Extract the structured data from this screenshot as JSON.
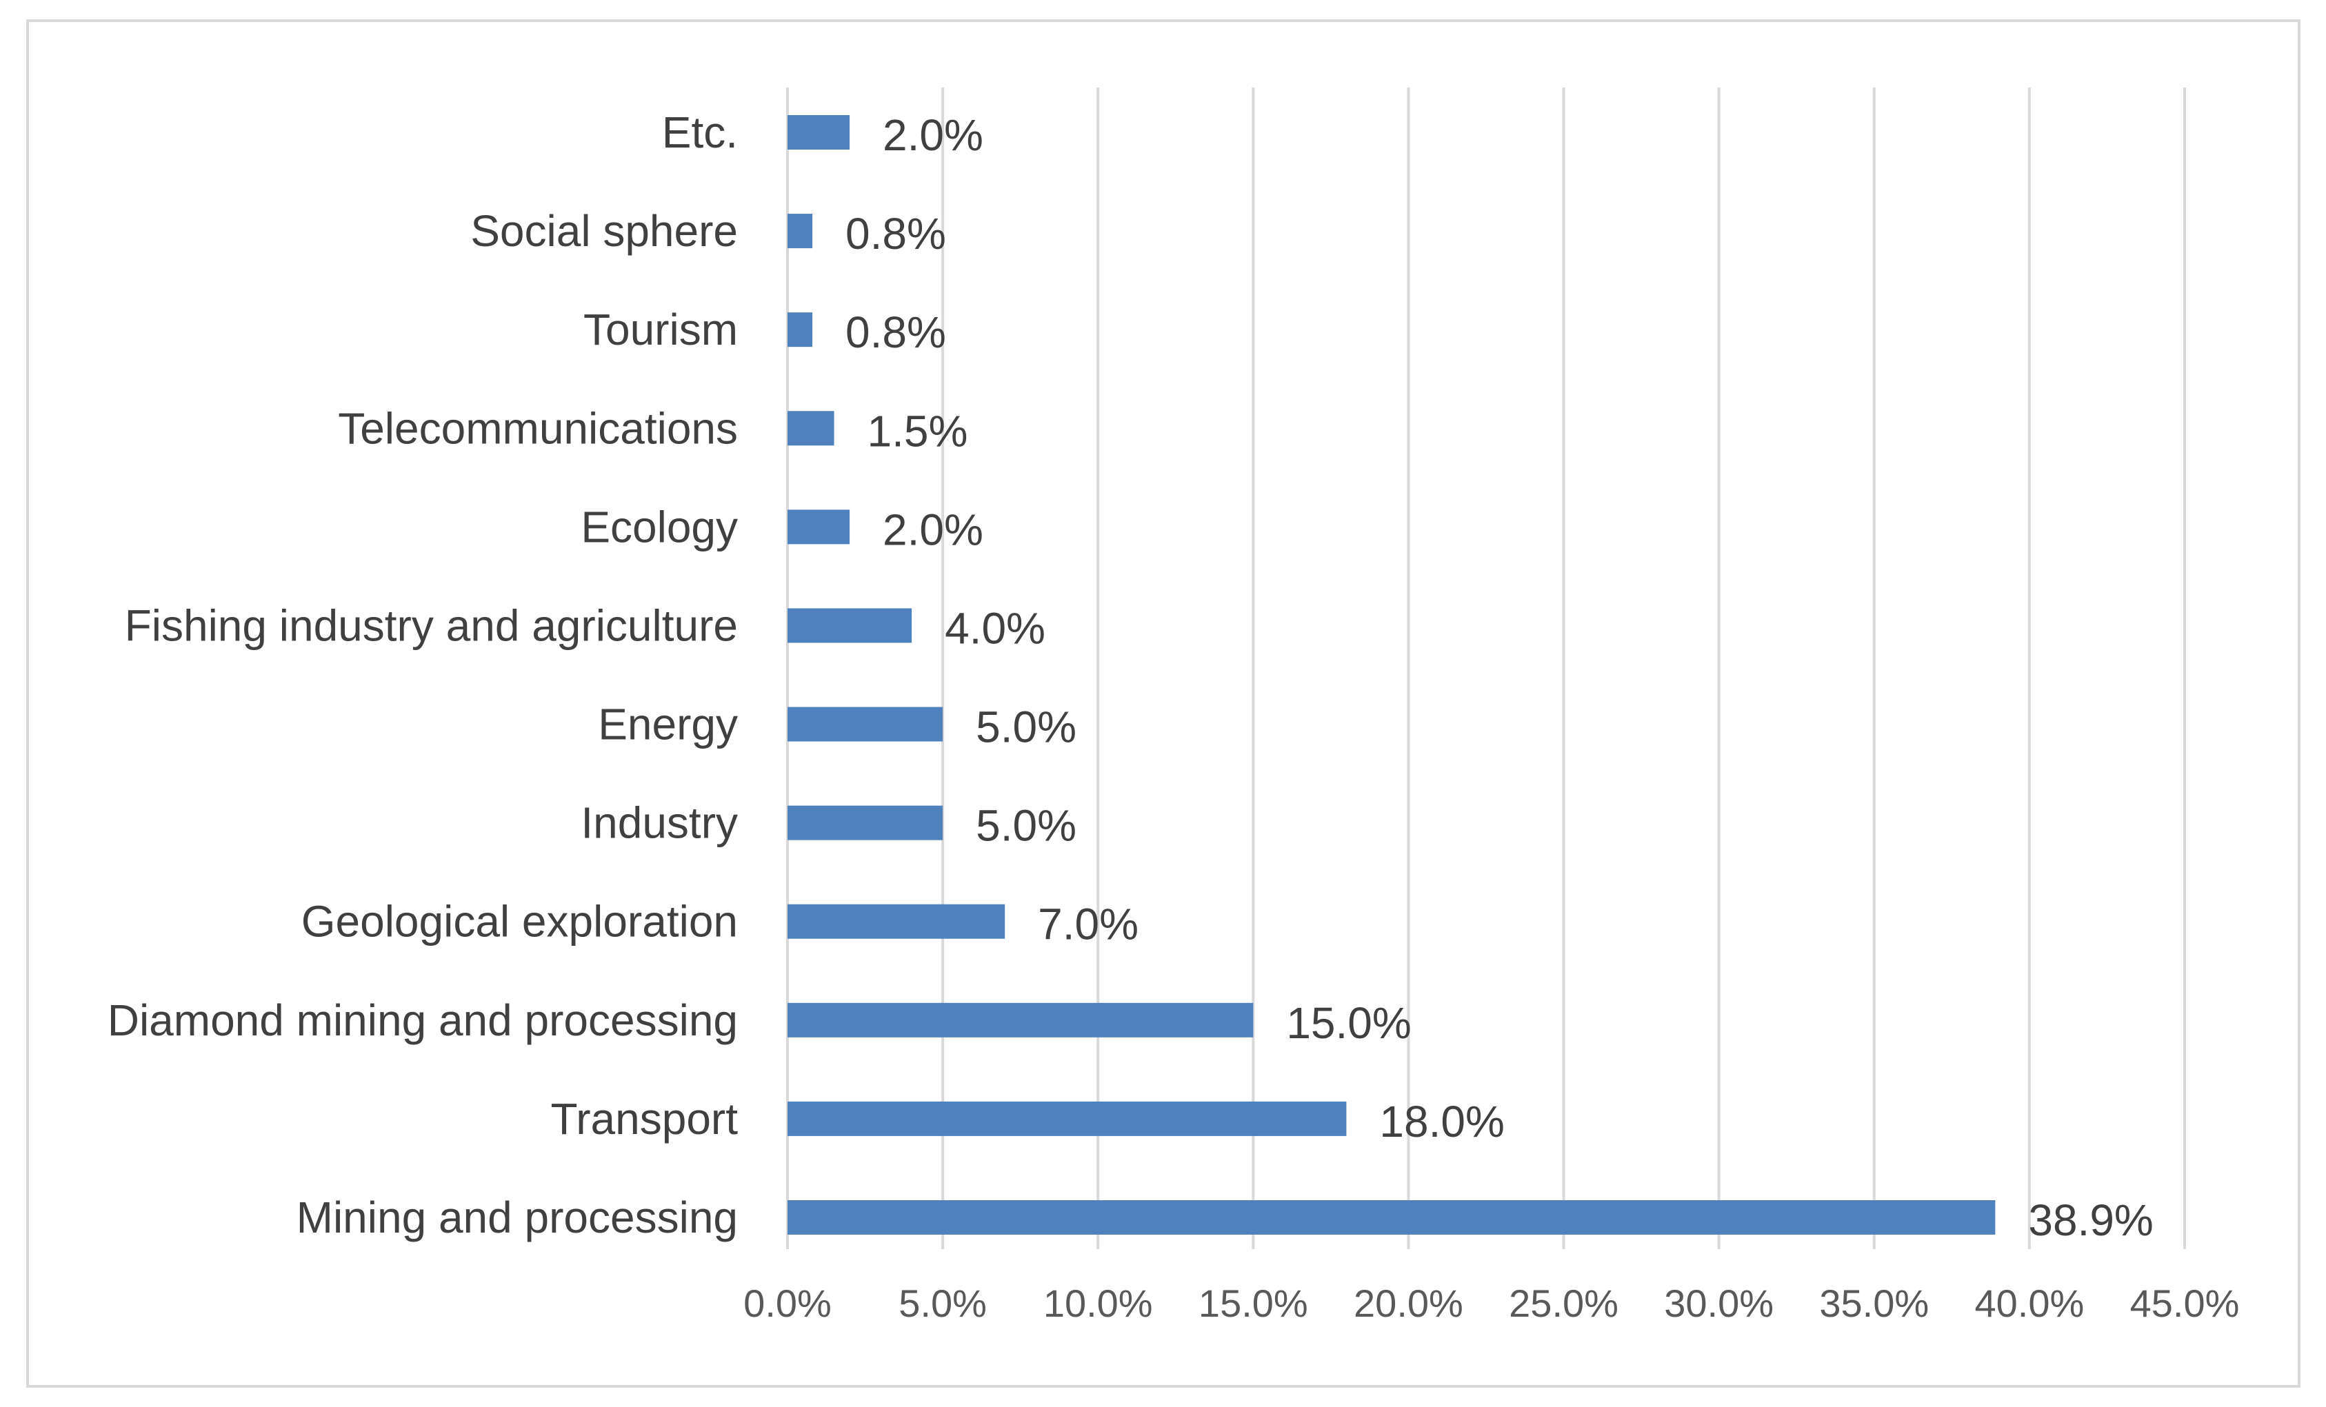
{
  "chart_data": {
    "type": "bar",
    "orientation": "horizontal",
    "title": "",
    "xlabel": "",
    "ylabel": "",
    "categories": [
      "Mining and processing",
      "Transport",
      "Diamond mining and processing",
      "Geological exploration",
      "Industry",
      "Energy",
      "Fishing industry and agriculture",
      "Ecology",
      "Telecommunications",
      "Tourism",
      "Social sphere",
      "Etc."
    ],
    "values": [
      38.9,
      18.0,
      15.0,
      7.0,
      5.0,
      5.0,
      4.0,
      2.0,
      1.5,
      0.8,
      0.8,
      2.0
    ],
    "value_labels": [
      "38.9%",
      "18.0%",
      "15.0%",
      "7.0%",
      "5.0%",
      "5.0%",
      "4.0%",
      "2.0%",
      "1.5%",
      "0.8%",
      "0.8%",
      "2.0%"
    ],
    "xlim": [
      0,
      45
    ],
    "xticks": [
      0,
      5,
      10,
      15,
      20,
      25,
      30,
      35,
      40,
      45
    ],
    "xtick_labels": [
      "0.0%",
      "5.0%",
      "10.0%",
      "15.0%",
      "20.0%",
      "25.0%",
      "30.0%",
      "35.0%",
      "40.0%",
      "45.0%"
    ],
    "grid": "vertical",
    "legend": "none",
    "bar_color": "#4f81bd",
    "grid_color": "#d9d9d9",
    "text_color": "#404040"
  }
}
